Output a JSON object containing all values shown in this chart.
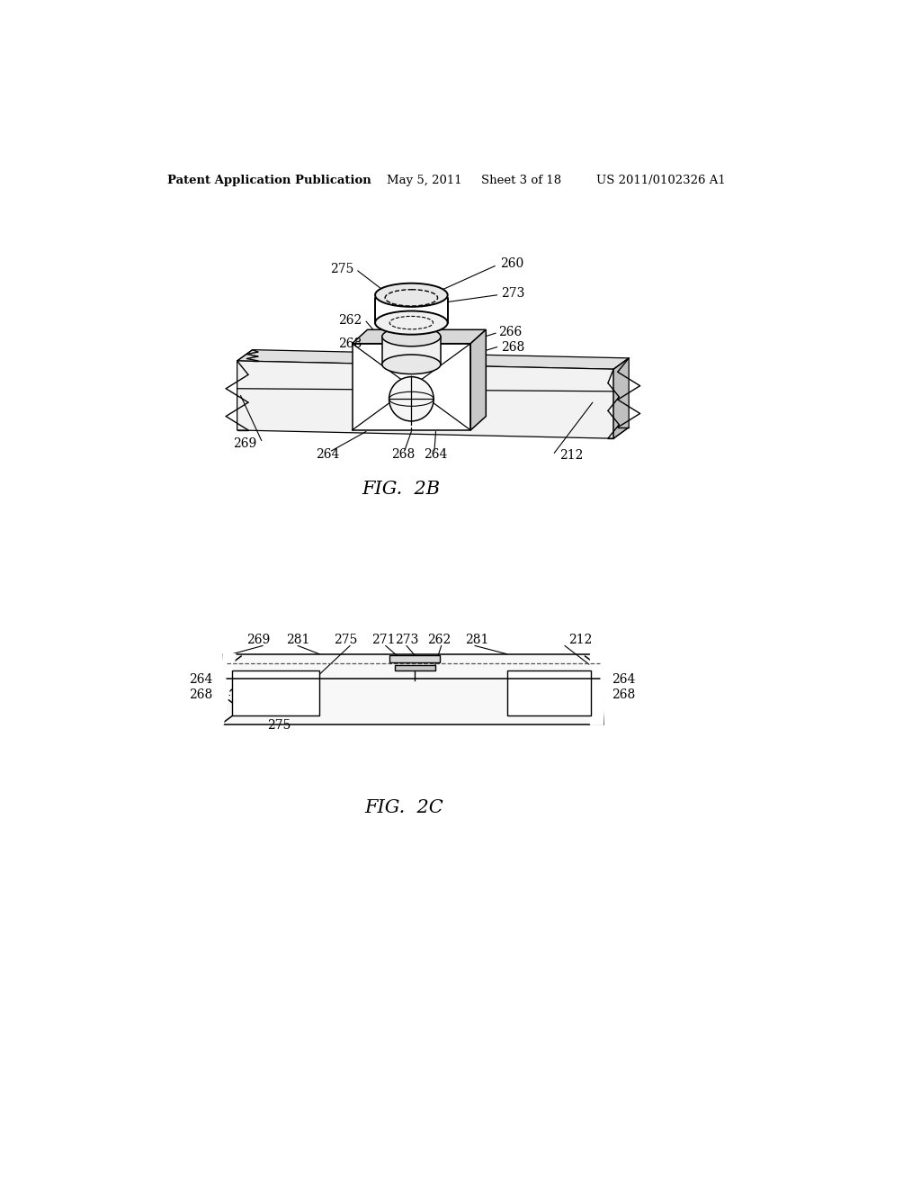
{
  "bg_color": "#ffffff",
  "header_text": "Patent Application Publication",
  "header_date": "May 5, 2011",
  "header_sheet": "Sheet 3 of 18",
  "header_patent": "US 2011/0102326 A1",
  "fig2b_label": "FIG.  2B",
  "fig2c_label": "FIG.  2C"
}
